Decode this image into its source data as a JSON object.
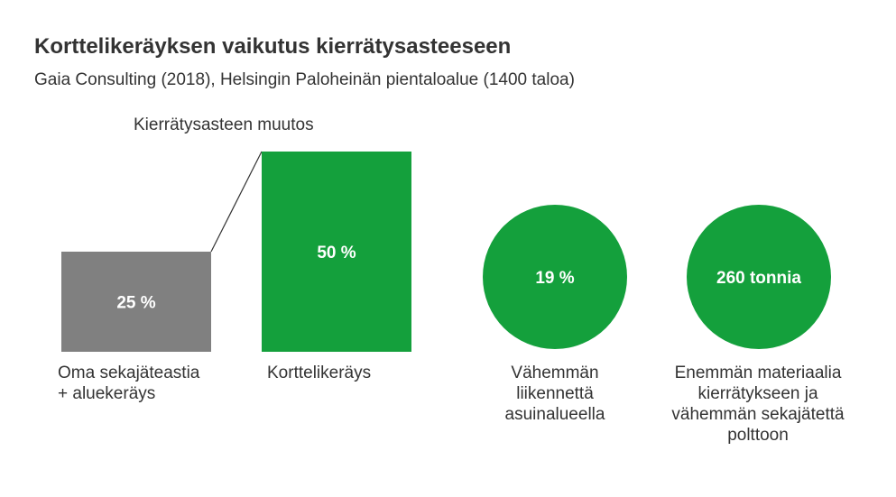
{
  "title": "Korttelikeräyksen vaikutus kierrätysasteeseen",
  "subtitle": "Gaia Consulting (2018), Helsingin Paloheinän pientaloalue (1400 taloa)",
  "chart_data": {
    "type": "bar",
    "header": "Kierrätysasteen muutos",
    "categories": [
      "Oma sekajäteastia + aluekeräys",
      "Korttelikeräys"
    ],
    "values": [
      25,
      50
    ],
    "value_labels": [
      "25 %",
      "50 %"
    ],
    "colors": [
      "#808080",
      "#14a03c"
    ],
    "category_lines": [
      [
        "Oma sekajäteastia",
        "+ aluekeräys"
      ],
      [
        "Korttelikeräys"
      ]
    ]
  },
  "circles": [
    {
      "value_label": "19 %",
      "label_lines": [
        "Vähemmän",
        "liikennettä",
        "asuinalueella"
      ],
      "color": "#14a03c"
    },
    {
      "value_label": "260 tonnia",
      "label_lines": [
        "Enemmän materiaalia",
        "kierrätykseen ja",
        "vähemmän sekajätettä",
        "polttoon"
      ],
      "color": "#14a03c"
    }
  ]
}
